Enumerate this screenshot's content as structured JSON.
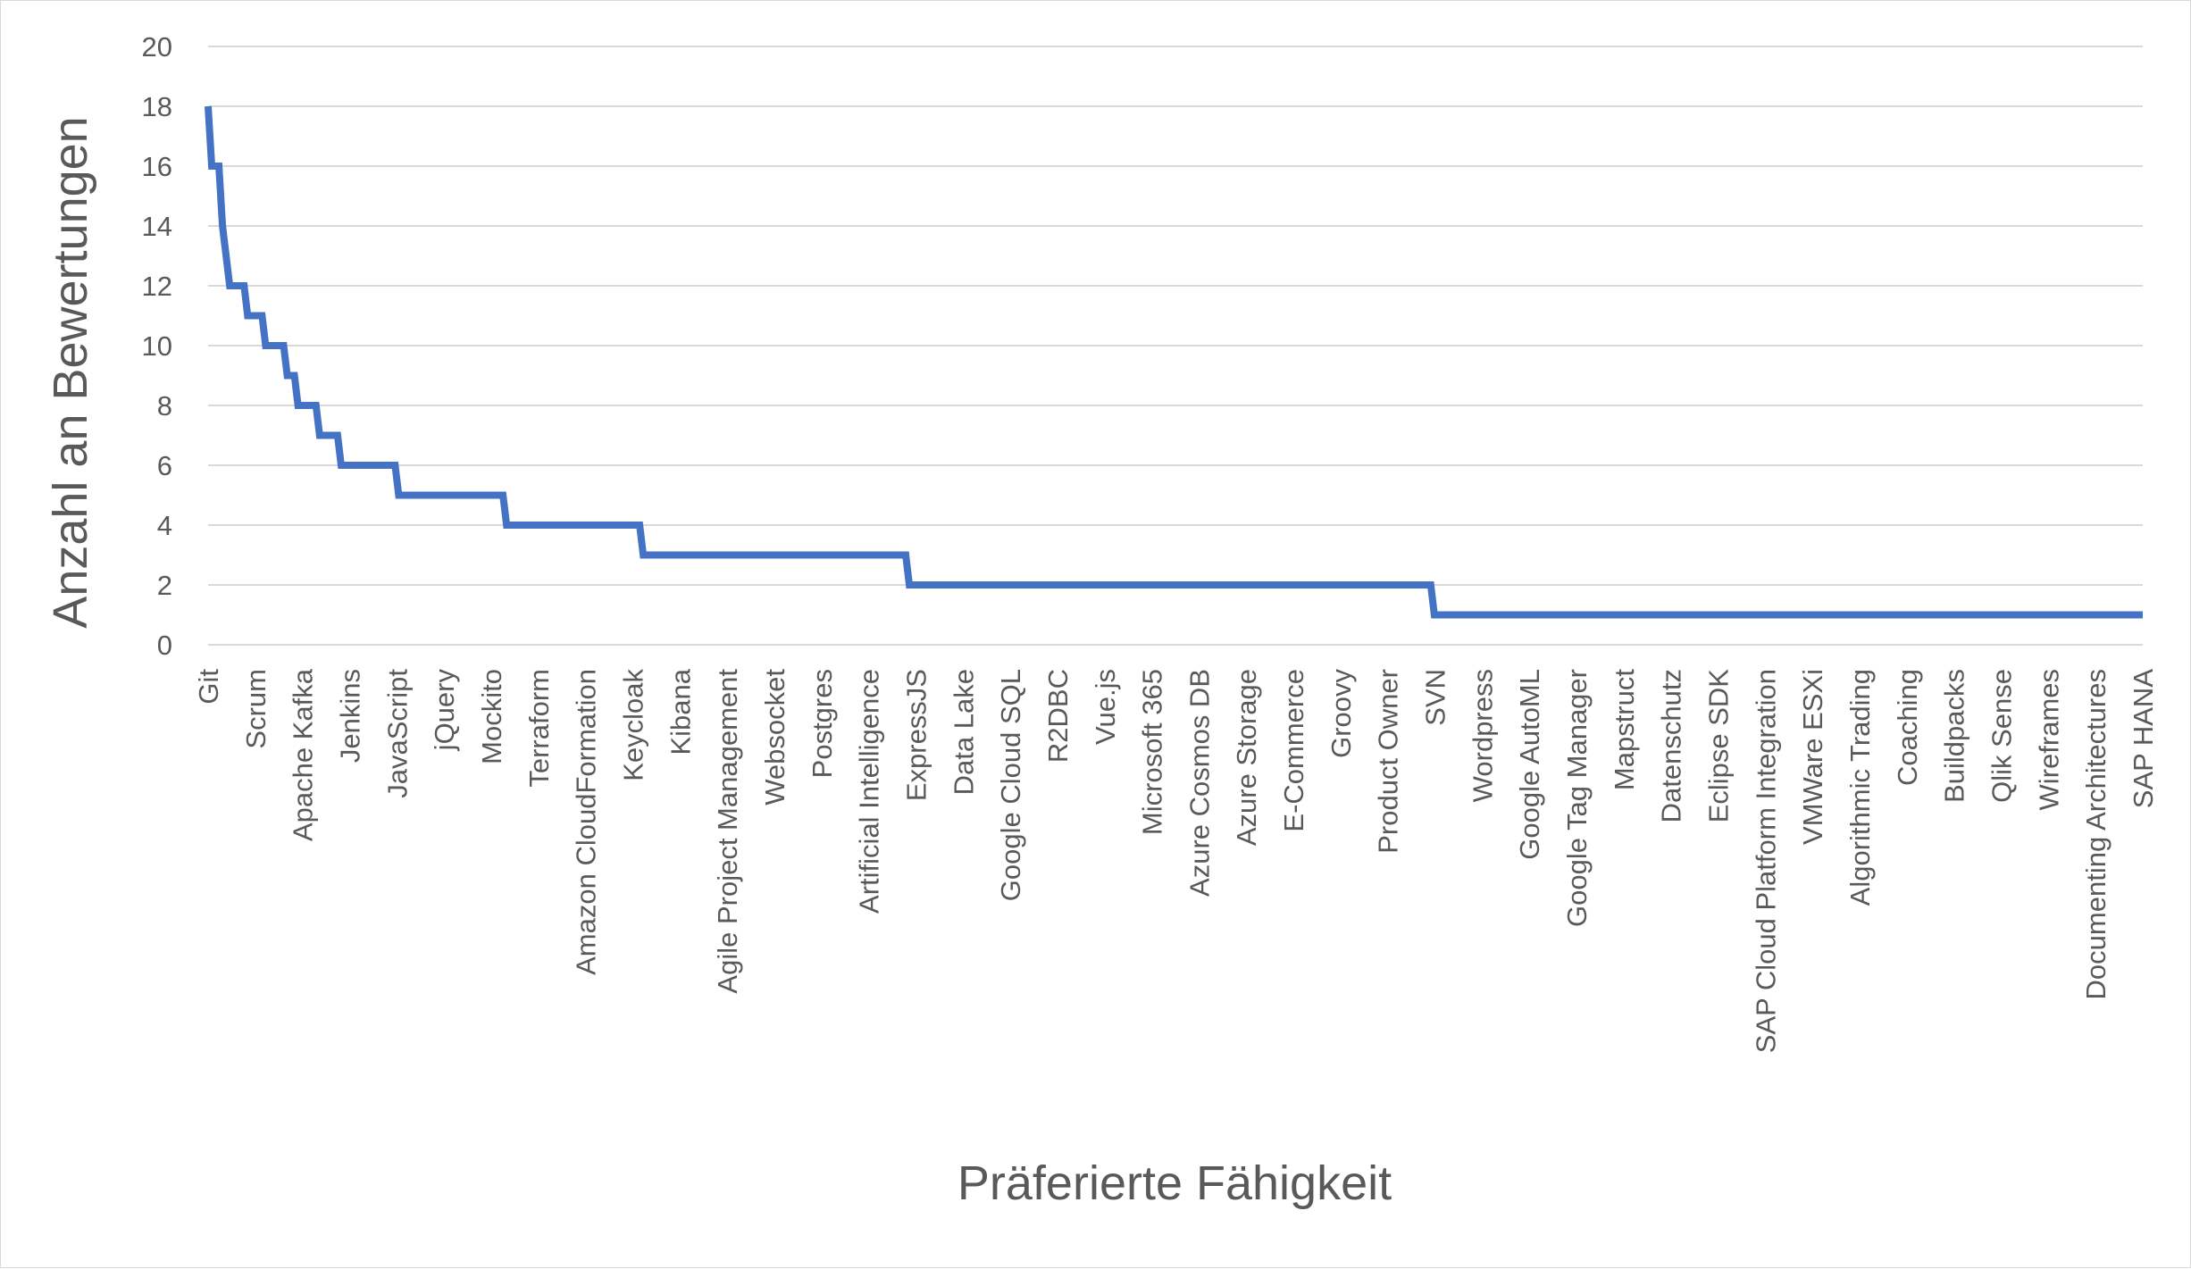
{
  "chart_data": {
    "type": "line",
    "title": "",
    "xlabel": "Präferierte Fähigkeit",
    "ylabel": "Anzahl an Bewertungen",
    "ylim": [
      0,
      20
    ],
    "yticks": [
      0,
      2,
      4,
      6,
      8,
      10,
      12,
      14,
      16,
      18,
      20
    ],
    "grid": "horizontal",
    "legend": "none",
    "line_color": "#4472c4",
    "grid_color": "#d9d9d9",
    "x_labels_shown": [
      "Git",
      "Scrum",
      "Apache Kafka",
      "Jenkins",
      "JavaScript",
      "jQuery",
      "Mockito",
      "Terraform",
      "Amazon CloudFormation",
      "Keycloak",
      "Kibana",
      "Agile Project Management",
      "Websocket",
      "Postgres",
      "Artificial Intelligence",
      "ExpressJS",
      "Data Lake",
      "Google Cloud SQL",
      "R2DBC",
      "Vue.js",
      "Microsoft 365",
      "Azure Cosmos DB",
      "Azure Storage",
      "E-Commerce",
      "Groovy",
      "Product Owner",
      "SVN",
      "Wordpress",
      "Google AutoML",
      "Google Tag Manager",
      "Mapstruct",
      "Datenschutz",
      "Eclipse SDK",
      "SAP Cloud Platform Integration",
      "VMWare ESXi",
      "Algorithmic Trading",
      "Coaching",
      "Buildpacks",
      "Qlik Sense",
      "Wireframes",
      "Documenting Architectures",
      "SAP HANA"
    ],
    "values": [
      18,
      16,
      16,
      16,
      14,
      13,
      12,
      12,
      12,
      12,
      12,
      11,
      11,
      11,
      11,
      11,
      10,
      10,
      10,
      10,
      10,
      10,
      9,
      9,
      9,
      8,
      8,
      8,
      8,
      8,
      8,
      7,
      7,
      7,
      7,
      7,
      7,
      6,
      6,
      6,
      6,
      6,
      6,
      6,
      6,
      6,
      6,
      6,
      6,
      6,
      6,
      6,
      6,
      5,
      5,
      5,
      5,
      5,
      5,
      5,
      5,
      5,
      5,
      5,
      5,
      5,
      5,
      5,
      5,
      5,
      5,
      5,
      5,
      5,
      5,
      5,
      5,
      5,
      5,
      5,
      5,
      5,
      5,
      4,
      4,
      4,
      4,
      4,
      4,
      4,
      4,
      4,
      4,
      4,
      4,
      4,
      4,
      4,
      4,
      4,
      4,
      4,
      4,
      4,
      4,
      4,
      4,
      4,
      4,
      4,
      4,
      4,
      4,
      4,
      4,
      4,
      4,
      4,
      4,
      4,
      4,
      3,
      3,
      3,
      3,
      3,
      3,
      3,
      3,
      3,
      3,
      3,
      3,
      3,
      3,
      3,
      3,
      3,
      3,
      3,
      3,
      3,
      3,
      3,
      3,
      3,
      3,
      3,
      3,
      3,
      3,
      3,
      3,
      3,
      3,
      3,
      3,
      3,
      3,
      3,
      3,
      3,
      3,
      3,
      3,
      3,
      3,
      3,
      3,
      3,
      3,
      3,
      3,
      3,
      3,
      3,
      3,
      3,
      3,
      3,
      3,
      3,
      3,
      3,
      3,
      3,
      3,
      3,
      3,
      3,
      3,
      3,
      3,
      3,
      3,
      2,
      2,
      2,
      2,
      2,
      2,
      2,
      2,
      2,
      2,
      2,
      2,
      2,
      2,
      2,
      2,
      2,
      2,
      2,
      2,
      2,
      2,
      2,
      2,
      2,
      2,
      2,
      2,
      2,
      2,
      2,
      2,
      2,
      2,
      2,
      2,
      2,
      2,
      2,
      2,
      2,
      2,
      2,
      2,
      2,
      2,
      2,
      2,
      2,
      2,
      2,
      2,
      2,
      2,
      2,
      2,
      2,
      2,
      2,
      2,
      2,
      2,
      2,
      2,
      2,
      2,
      2,
      2,
      2,
      2,
      2,
      2,
      2,
      2,
      2,
      2,
      2,
      2,
      2,
      2,
      2,
      2,
      2,
      2,
      2,
      2,
      2,
      2,
      2,
      2,
      2,
      2,
      2,
      2,
      2,
      2,
      2,
      2,
      2,
      2,
      2,
      2,
      2,
      2,
      2,
      2,
      2,
      2,
      2,
      2,
      2,
      2,
      2,
      2,
      2,
      2,
      2,
      2,
      2,
      2,
      2,
      2,
      2,
      2,
      2,
      2,
      2,
      2,
      2,
      2,
      2,
      2,
      2,
      2,
      2,
      2,
      2,
      2,
      2,
      2,
      2,
      2,
      2,
      2,
      2,
      2,
      1,
      1,
      1,
      1,
      1,
      1,
      1,
      1,
      1,
      1,
      1,
      1,
      1,
      1,
      1,
      1,
      1,
      1,
      1,
      1,
      1,
      1,
      1,
      1,
      1,
      1,
      1,
      1,
      1,
      1,
      1,
      1,
      1,
      1,
      1,
      1,
      1,
      1,
      1,
      1,
      1,
      1,
      1,
      1,
      1,
      1,
      1,
      1,
      1,
      1,
      1,
      1,
      1,
      1,
      1,
      1,
      1,
      1,
      1,
      1,
      1,
      1,
      1,
      1,
      1,
      1,
      1,
      1,
      1,
      1,
      1,
      1,
      1,
      1,
      1,
      1,
      1,
      1,
      1,
      1,
      1,
      1,
      1,
      1,
      1,
      1,
      1,
      1,
      1,
      1,
      1,
      1,
      1,
      1,
      1,
      1,
      1,
      1,
      1,
      1,
      1,
      1,
      1,
      1,
      1,
      1,
      1,
      1,
      1,
      1,
      1,
      1,
      1,
      1,
      1,
      1,
      1,
      1,
      1,
      1,
      1,
      1,
      1,
      1,
      1,
      1,
      1,
      1,
      1,
      1,
      1,
      1,
      1,
      1,
      1,
      1,
      1,
      1,
      1,
      1,
      1,
      1,
      1,
      1,
      1,
      1,
      1,
      1,
      1,
      1,
      1,
      1,
      1,
      1,
      1,
      1,
      1,
      1,
      1,
      1,
      1,
      1,
      1,
      1,
      1,
      1,
      1,
      1,
      1,
      1,
      1,
      1,
      1,
      1,
      1,
      1,
      1,
      1,
      1,
      1,
      1,
      1,
      1,
      1,
      1,
      1,
      1,
      1,
      1,
      1,
      1,
      1,
      1,
      1,
      1,
      1,
      1,
      1
    ]
  }
}
